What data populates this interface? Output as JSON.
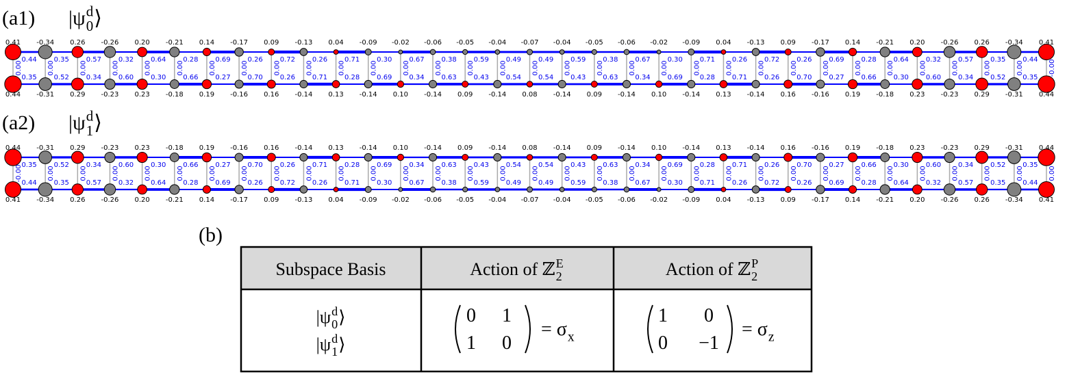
{
  "panels": [
    {
      "label": "(a1)",
      "state": {
        "open": "|ψ",
        "sup": "d",
        "sub": "0",
        "close": "⟩"
      },
      "top_sites": [
        "0.41",
        "-0.34",
        "0.26",
        "-0.26",
        "0.20",
        "-0.21",
        "0.14",
        "-0.17",
        "0.09",
        "-0.13",
        "0.04",
        "-0.09",
        "-0.02",
        "-0.06",
        "-0.05",
        "-0.04",
        "-0.07",
        "-0.04",
        "-0.05",
        "-0.06",
        "-0.02",
        "-0.09",
        "0.04",
        "-0.13",
        "0.09",
        "-0.17",
        "0.14",
        "-0.21",
        "0.20",
        "-0.26",
        "0.26",
        "-0.34",
        "0.41"
      ],
      "bottom_sites": [
        "0.44",
        "-0.31",
        "0.29",
        "-0.23",
        "0.23",
        "-0.18",
        "0.19",
        "-0.16",
        "0.16",
        "-0.14",
        "0.13",
        "-0.14",
        "0.10",
        "-0.14",
        "0.09",
        "-0.14",
        "0.08",
        "-0.14",
        "0.09",
        "-0.14",
        "0.10",
        "-0.14",
        "0.13",
        "-0.14",
        "0.16",
        "-0.16",
        "0.19",
        "-0.18",
        "0.23",
        "-0.23",
        "0.29",
        "-0.31",
        "0.44"
      ],
      "top_bonds": [
        "0.44",
        "0.35",
        "0.57",
        "0.32",
        "0.64",
        "0.28",
        "0.69",
        "0.26",
        "0.72",
        "0.26",
        "0.71",
        "0.30",
        "0.67",
        "0.38",
        "0.59",
        "0.49",
        "0.49",
        "0.59",
        "0.38",
        "0.67",
        "0.30",
        "0.71",
        "0.26",
        "0.72",
        "0.26",
        "0.69",
        "0.28",
        "0.64",
        "0.32",
        "0.57",
        "0.35",
        "0.44"
      ],
      "bottom_bonds": [
        "0.35",
        "0.52",
        "0.34",
        "0.60",
        "0.30",
        "0.66",
        "0.27",
        "0.70",
        "0.26",
        "0.71",
        "0.28",
        "0.69",
        "0.34",
        "0.63",
        "0.43",
        "0.54",
        "0.54",
        "0.43",
        "0.63",
        "0.34",
        "0.69",
        "0.28",
        "0.71",
        "0.26",
        "0.70",
        "0.27",
        "0.66",
        "0.30",
        "0.60",
        "0.34",
        "0.52",
        "0.35"
      ],
      "rungs": [
        "0.00",
        "0.00",
        "0.00",
        "0.00",
        "0.00",
        "0.00",
        "0.00",
        "0.00",
        "0.00",
        "0.00",
        "0.00",
        "0.00",
        "0.00",
        "0.00",
        "0.00",
        "0.00",
        "0.00",
        "0.00",
        "0.00",
        "0.00",
        "0.00",
        "0.00",
        "0.00",
        "0.00",
        "0.00",
        "0.00",
        "0.00",
        "0.00",
        "0.00",
        "0.00",
        "0.00",
        "0.00",
        "-0.00"
      ]
    },
    {
      "label": "(a2)",
      "state": {
        "open": "|ψ",
        "sup": "d",
        "sub": "1",
        "close": "⟩"
      },
      "top_sites": [
        "0.44",
        "-0.31",
        "0.29",
        "-0.23",
        "0.23",
        "-0.18",
        "0.19",
        "-0.16",
        "0.16",
        "-0.14",
        "0.13",
        "-0.14",
        "0.10",
        "-0.14",
        "0.09",
        "-0.14",
        "0.08",
        "-0.14",
        "0.09",
        "-0.14",
        "0.10",
        "-0.14",
        "0.13",
        "-0.14",
        "0.16",
        "-0.16",
        "0.19",
        "-0.18",
        "0.23",
        "-0.23",
        "0.29",
        "-0.31",
        "0.44"
      ],
      "bottom_sites": [
        "0.41",
        "-0.34",
        "0.26",
        "-0.26",
        "0.20",
        "-0.21",
        "0.14",
        "-0.17",
        "0.09",
        "-0.13",
        "0.04",
        "-0.09",
        "-0.02",
        "-0.06",
        "-0.05",
        "-0.04",
        "-0.07",
        "-0.04",
        "-0.05",
        "-0.06",
        "-0.02",
        "-0.09",
        "0.04",
        "-0.13",
        "0.09",
        "-0.17",
        "0.14",
        "-0.21",
        "0.20",
        "-0.26",
        "0.26",
        "-0.34",
        "0.41"
      ],
      "top_bonds": [
        "0.35",
        "0.52",
        "0.34",
        "0.60",
        "0.30",
        "0.66",
        "0.27",
        "0.70",
        "0.26",
        "0.71",
        "0.28",
        "0.69",
        "0.34",
        "0.63",
        "0.43",
        "0.54",
        "0.54",
        "0.43",
        "0.63",
        "0.34",
        "0.69",
        "0.28",
        "0.71",
        "0.26",
        "0.70",
        "0.27",
        "0.66",
        "0.30",
        "0.60",
        "0.34",
        "0.52",
        "0.35"
      ],
      "bottom_bonds": [
        "0.44",
        "0.35",
        "0.57",
        "0.32",
        "0.64",
        "0.28",
        "0.69",
        "0.26",
        "0.72",
        "0.26",
        "0.71",
        "0.30",
        "0.67",
        "0.38",
        "0.59",
        "0.49",
        "0.49",
        "0.59",
        "0.38",
        "0.67",
        "0.30",
        "0.71",
        "0.26",
        "0.72",
        "0.26",
        "0.69",
        "0.28",
        "0.64",
        "0.32",
        "0.57",
        "0.35",
        "0.44"
      ],
      "rungs": [
        "-0.00",
        "0.00",
        "0.00",
        "0.00",
        "0.00",
        "0.00",
        "0.00",
        "0.00",
        "0.00",
        "0.00",
        "0.00",
        "0.00",
        "0.00",
        "0.00",
        "0.00",
        "0.00",
        "0.00",
        "0.00",
        "0.00",
        "0.00",
        "0.00",
        "0.00",
        "0.00",
        "0.00",
        "0.00",
        "0.00",
        "0.00",
        "0.00",
        "0.00",
        "0.00",
        "0.00",
        "0.00",
        "0.00"
      ]
    }
  ],
  "table": {
    "label": "(b)",
    "header": [
      {
        "text": "Subspace Basis"
      },
      {
        "text": "Action of ℤ",
        "sub": "2",
        "sup": "E"
      },
      {
        "text": "Action of ℤ",
        "sub": "2",
        "sup": "P"
      }
    ],
    "basis": [
      {
        "open": "|ψ",
        "sup": "d",
        "sub": "0",
        "close": "⟩"
      },
      {
        "open": "|ψ",
        "sup": "d",
        "sub": "1",
        "close": "⟩"
      }
    ],
    "actions": [
      {
        "matrix": [
          [
            "0",
            "1"
          ],
          [
            "1",
            "0"
          ]
        ],
        "result": "= σ",
        "result_sub": "x"
      },
      {
        "matrix": [
          [
            "1",
            "0"
          ],
          [
            "0",
            "−1"
          ]
        ],
        "result": "= σ",
        "result_sub": "z"
      }
    ]
  }
}
